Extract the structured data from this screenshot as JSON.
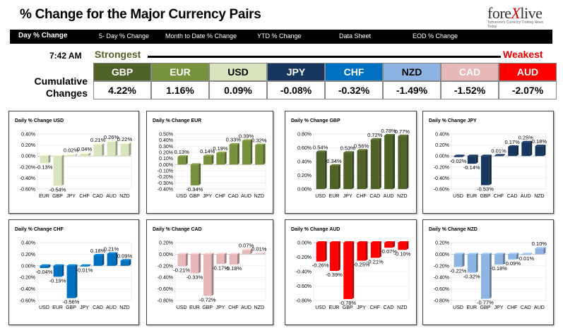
{
  "header": {
    "title": "% Change for the Major Currency Pairs",
    "logo_text_a": "fore",
    "logo_text_x": "X",
    "logo_text_b": "live",
    "logo_tagline": "Tomorrow's Currency Trading News Today"
  },
  "nav": {
    "items": [
      "Day % Change",
      "5- Day % Change",
      "Month to Date % Change",
      "YTD % Change",
      "Data Sheet",
      "EOD % Change"
    ]
  },
  "summary": {
    "time": "7:42 AM",
    "strongest_label": "Strongest",
    "weakest_label": "Weakest",
    "cumulative_label_1": "Cumulative",
    "cumulative_label_2": "Changes",
    "currencies": [
      {
        "code": "GBP",
        "value": "4.22%",
        "color": "#4f6228",
        "text": "#ffffff"
      },
      {
        "code": "EUR",
        "value": "1.16%",
        "color": "#76923c",
        "text": "#ffffff"
      },
      {
        "code": "USD",
        "value": "0.09%",
        "color": "#d7e4bd",
        "text": "#000000"
      },
      {
        "code": "JPY",
        "value": "-0.08%",
        "color": "#17375e",
        "text": "#ffffff"
      },
      {
        "code": "CHF",
        "value": "-0.32%",
        "color": "#0070c0",
        "text": "#ffffff"
      },
      {
        "code": "NZD",
        "value": "-1.49%",
        "color": "#8db4e2",
        "text": "#000000"
      },
      {
        "code": "CAD",
        "value": "-1.52%",
        "color": "#e6b9b8",
        "text": "#ffffff"
      },
      {
        "code": "AUD",
        "value": "-2.07%",
        "color": "#ff0000",
        "text": "#ffffff"
      }
    ]
  },
  "chart_data": [
    {
      "type": "bar",
      "title": "Daily % Change USD",
      "categories": [
        "EUR",
        "GBP",
        "JPY",
        "CHF",
        "CAD",
        "AUD",
        "NZD"
      ],
      "values": [
        -0.13,
        -0.54,
        0.02,
        0.04,
        0.21,
        0.26,
        0.22
      ],
      "labels": [
        "-0.13%",
        "-0.54%",
        "0.02%",
        "0.04%",
        "0.21%",
        "0.26%",
        "0.22%"
      ],
      "ylim": [
        -0.6,
        0.4
      ],
      "yticks": [
        "0.40%",
        "0.20%",
        "0.00%",
        "-0.20%",
        "-0.40%",
        "-0.60%"
      ],
      "color": "#d7e4bd"
    },
    {
      "type": "bar",
      "title": "Daily % Change EUR",
      "categories": [
        "USD",
        "GBP",
        "JPY",
        "CHF",
        "CAD",
        "AUD",
        "NZD"
      ],
      "values": [
        0.13,
        -0.34,
        0.14,
        0.19,
        0.33,
        0.39,
        0.32
      ],
      "labels": [
        "0.13%",
        "-0.34%",
        "0.14%",
        "0.19%",
        "0.33%",
        "0.39%",
        "0.32%"
      ],
      "ylim": [
        -0.4,
        0.5
      ],
      "yticks": [
        "0.50%",
        "0.40%",
        "0.30%",
        "0.20%",
        "0.10%",
        "0.00%",
        "-0.10%",
        "-0.20%",
        "-0.30%",
        "-0.40%"
      ],
      "color": "#76923c"
    },
    {
      "type": "bar",
      "title": "Daily % Change GBP",
      "categories": [
        "USD",
        "EUR",
        "JPY",
        "CHF",
        "CAD",
        "AUD",
        "NZD"
      ],
      "values": [
        0.54,
        0.34,
        0.53,
        0.56,
        0.72,
        0.78,
        0.77
      ],
      "labels": [
        "0.54%",
        "0.34%",
        "0.53%",
        "0.56%",
        "0.72%",
        "0.78%",
        "0.77%"
      ],
      "ylim": [
        0,
        0.8
      ],
      "yticks": [
        "0.80%",
        "0.60%",
        "0.40%",
        "0.20%",
        "0.00%"
      ],
      "color": "#4f6228"
    },
    {
      "type": "bar",
      "title": "Daily % Change JPY",
      "categories": [
        "USD",
        "EUR",
        "GBP",
        "CHF",
        "CAD",
        "AUD",
        "NZD"
      ],
      "values": [
        -0.02,
        -0.14,
        -0.53,
        0.01,
        0.17,
        0.25,
        0.18
      ],
      "labels": [
        "-0.02%",
        "-0.14%",
        "-0.53%",
        "0.01%",
        "0.17%",
        "0.25%",
        "0.18%"
      ],
      "ylim": [
        -0.6,
        0.4
      ],
      "yticks": [
        "0.40%",
        "0.20%",
        "0.00%",
        "-0.20%",
        "-0.40%",
        "-0.60%"
      ],
      "color": "#17375e"
    },
    {
      "type": "bar",
      "title": "Daily % Change CHF",
      "categories": [
        "USD",
        "EUR",
        "GBP",
        "JPY",
        "CAD",
        "AUD",
        "NZD"
      ],
      "values": [
        -0.04,
        -0.19,
        -0.56,
        -0.01,
        0.18,
        0.21,
        0.09
      ],
      "labels": [
        "-0.04%",
        "-0.19%",
        "-0.56%",
        "-0.01%",
        "0.18%",
        "0.21%",
        "0.09%"
      ],
      "ylim": [
        -0.6,
        0.4
      ],
      "yticks": [
        "0.40%",
        "0.20%",
        "0.00%",
        "-0.20%",
        "-0.40%",
        "-0.60%"
      ],
      "color": "#0070c0"
    },
    {
      "type": "bar",
      "title": "Daily % Change CAD",
      "categories": [
        "USD",
        "EUR",
        "GBP",
        "JPY",
        "CHF",
        "AUD",
        "NZD"
      ],
      "values": [
        -0.21,
        -0.33,
        -0.72,
        -0.17,
        -0.18,
        0.07,
        0.01
      ],
      "labels": [
        "-0.21%",
        "-0.33%",
        "-0.72%",
        "-0.17%",
        "-0.18%",
        "0.07%",
        "0.01%"
      ],
      "ylim": [
        -0.8,
        0.2
      ],
      "yticks": [
        "0.20%",
        "0.00%",
        "-0.20%",
        "-0.40%",
        "-0.60%",
        "-0.80%"
      ],
      "color": "#e6b9b8"
    },
    {
      "type": "bar",
      "title": "Daily % Change AUD",
      "categories": [
        "USD",
        "EUR",
        "GBP",
        "JPY",
        "CHF",
        "CAD",
        "NZD"
      ],
      "values": [
        -0.26,
        -0.39,
        -0.78,
        -0.25,
        -0.21,
        -0.07,
        -0.1
      ],
      "labels": [
        "-0.26%",
        "-0.39%",
        "-0.78%",
        "-0.25%",
        "-0.21%",
        "-0.07%",
        "-0.10%"
      ],
      "ylim": [
        -0.8,
        0.0
      ],
      "yticks": [
        "0.00%",
        "-0.20%",
        "-0.40%",
        "-0.60%",
        "-0.80%"
      ],
      "color": "#ff0000"
    },
    {
      "type": "bar",
      "title": "Daily % Change NZD",
      "categories": [
        "USD",
        "EUR",
        "GBP",
        "JPY",
        "CHF",
        "CAD",
        "AUD"
      ],
      "values": [
        -0.22,
        -0.32,
        -0.77,
        -0.18,
        -0.09,
        -0.01,
        0.1
      ],
      "labels": [
        "-0.22%",
        "-0.32%",
        "-0.77%",
        "-0.18%",
        "-0.09%",
        "-0.01%",
        "0.10%"
      ],
      "ylim": [
        -0.8,
        0.2
      ],
      "yticks": [
        "0.20%",
        "0.00%",
        "-0.20%",
        "-0.40%",
        "-0.60%",
        "-0.80%"
      ],
      "color": "#8db4e2"
    }
  ]
}
